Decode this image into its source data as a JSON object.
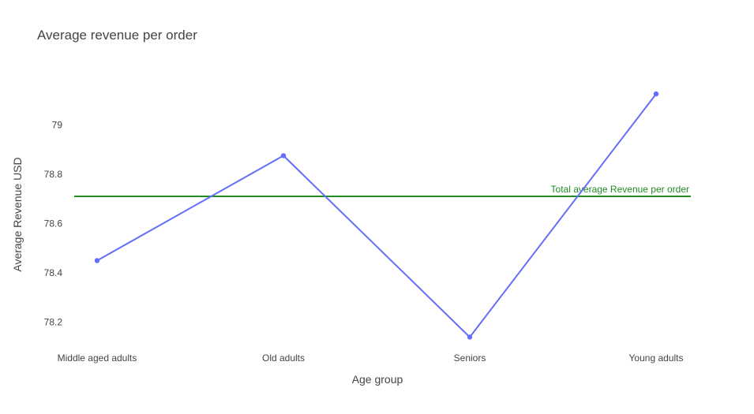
{
  "chart_data": {
    "type": "line",
    "title": "Average revenue per order",
    "xlabel": "Age group",
    "ylabel": "Average Revenue USD",
    "categories": [
      "Middle aged adults",
      "Old adults",
      "Seniors",
      "Young adults"
    ],
    "series": [
      {
        "values": [
          78.45,
          78.875,
          78.14,
          79.125
        ],
        "color": "#636efa"
      }
    ],
    "yticks": [
      78.2,
      78.4,
      78.6,
      78.8,
      79
    ],
    "ytick_labels": [
      "78.2",
      "78.4",
      "78.6",
      "78.8",
      "79"
    ],
    "ylim": [
      78.1,
      79.25
    ],
    "grid": false,
    "reference_line": {
      "value": 78.71,
      "label": "Total average Revenue per order",
      "color": "#228b22"
    }
  }
}
